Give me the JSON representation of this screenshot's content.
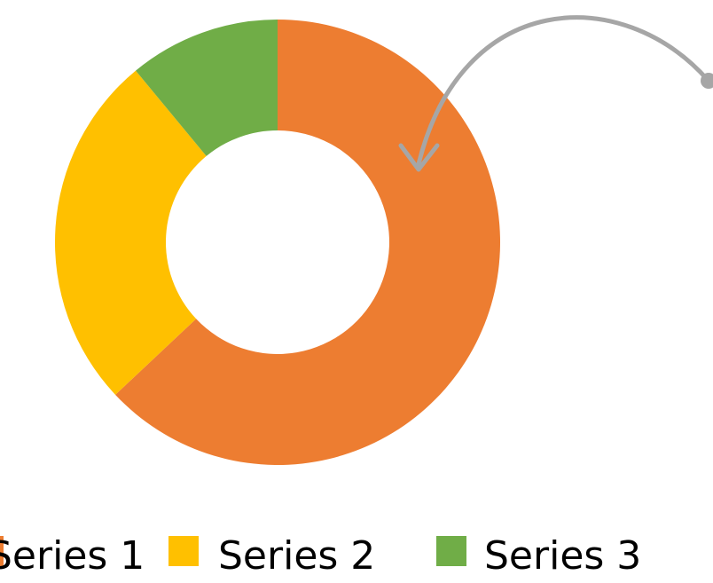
{
  "chart_data": {
    "type": "pie",
    "style": "doughnut",
    "start_angle_deg": 0,
    "direction": "clockwise",
    "slices": [
      {
        "name": "Series 1",
        "value": 0.63,
        "color": "#ED7D31"
      },
      {
        "name": "Series 2",
        "value": 0.26,
        "color": "#FFC000"
      },
      {
        "name": "Series 3",
        "value": 0.11,
        "color": "#70AD47"
      }
    ],
    "legend": {
      "position": "bottom",
      "entries": [
        "Series 1",
        "Series 2",
        "Series 3"
      ]
    },
    "annotation": {
      "type": "curved-arrow",
      "color": "#A6A6A6",
      "points_to": "Series 1"
    }
  }
}
